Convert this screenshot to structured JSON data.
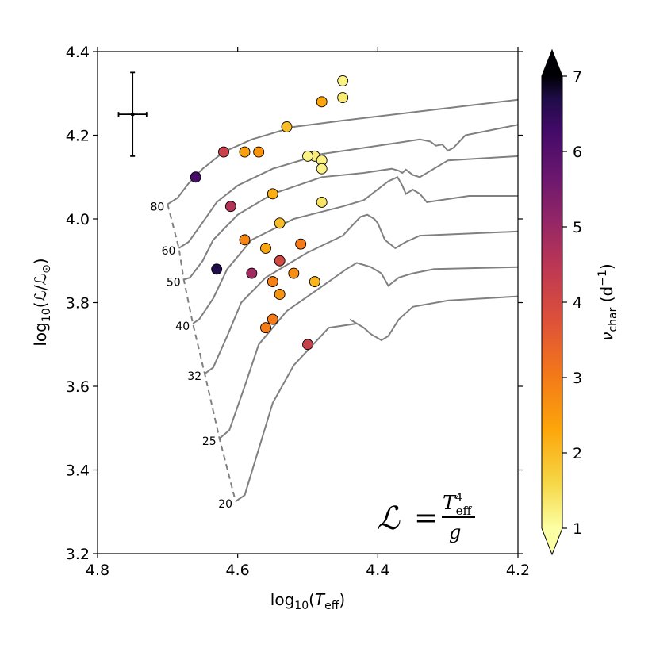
{
  "chart_data": {
    "type": "scatter",
    "title": "",
    "xlabel": {
      "main": "log",
      "sub": "10",
      "open": "(",
      "var": "T",
      "var_sub": "eff",
      "close": ")"
    },
    "ylabel": {
      "main": "log",
      "sub": "10",
      "open": "(",
      "num": "ℒ",
      "slash": "/",
      "den": "ℒ",
      "den_sub": "⊙",
      "close": ")"
    },
    "xlim": [
      4.8,
      4.2
    ],
    "ylim": [
      3.2,
      4.4
    ],
    "x_inverted": true,
    "xticks": [
      4.8,
      4.6,
      4.4,
      4.2
    ],
    "xtick_labels": [
      "4.8",
      "4.6",
      "4.4",
      "4.2"
    ],
    "yticks": [
      3.2,
      3.4,
      3.6,
      3.8,
      4.0,
      4.2,
      4.4
    ],
    "ytick_labels": [
      "3.2",
      "3.4",
      "3.6",
      "3.8",
      "4.0",
      "4.2",
      "4.4"
    ],
    "grid": false,
    "colorbar": {
      "label": {
        "main": "ν",
        "sub": "char",
        "unit": " (d",
        "sup": "−1",
        "close": ")"
      },
      "range": [
        1,
        7
      ],
      "ticks": [
        1,
        2,
        3,
        4,
        5,
        6,
        7
      ],
      "tick_labels": [
        "1",
        "2",
        "3",
        "4",
        "5",
        "6",
        "7"
      ],
      "extend": "both",
      "colormap": "inferno_r"
    },
    "points": [
      {
        "x": 4.45,
        "y": 4.33,
        "c": 1.2
      },
      {
        "x": 4.45,
        "y": 4.29,
        "c": 1.3
      },
      {
        "x": 4.48,
        "y": 4.28,
        "c": 2.3
      },
      {
        "x": 4.53,
        "y": 4.22,
        "c": 2.0
      },
      {
        "x": 4.49,
        "y": 4.15,
        "c": 1.3
      },
      {
        "x": 4.5,
        "y": 4.15,
        "c": 1.2
      },
      {
        "x": 4.48,
        "y": 4.14,
        "c": 1.2
      },
      {
        "x": 4.48,
        "y": 4.12,
        "c": 1.2
      },
      {
        "x": 4.48,
        "y": 4.04,
        "c": 1.4
      },
      {
        "x": 4.55,
        "y": 4.06,
        "c": 2.2
      },
      {
        "x": 4.54,
        "y": 3.99,
        "c": 2.0
      },
      {
        "x": 4.59,
        "y": 4.16,
        "c": 2.4
      },
      {
        "x": 4.57,
        "y": 4.16,
        "c": 2.6
      },
      {
        "x": 4.62,
        "y": 4.16,
        "c": 4.2
      },
      {
        "x": 4.66,
        "y": 4.1,
        "c": 6.2
      },
      {
        "x": 4.61,
        "y": 4.03,
        "c": 4.6
      },
      {
        "x": 4.59,
        "y": 3.95,
        "c": 2.8
      },
      {
        "x": 4.56,
        "y": 3.93,
        "c": 2.3
      },
      {
        "x": 4.51,
        "y": 3.94,
        "c": 3.0
      },
      {
        "x": 4.54,
        "y": 3.9,
        "c": 4.0
      },
      {
        "x": 4.52,
        "y": 3.87,
        "c": 2.7
      },
      {
        "x": 4.49,
        "y": 3.85,
        "c": 2.1
      },
      {
        "x": 4.55,
        "y": 3.85,
        "c": 2.9
      },
      {
        "x": 4.54,
        "y": 3.82,
        "c": 2.6
      },
      {
        "x": 4.63,
        "y": 3.88,
        "c": 6.7
      },
      {
        "x": 4.58,
        "y": 3.87,
        "c": 4.9
      },
      {
        "x": 4.55,
        "y": 3.76,
        "c": 3.0
      },
      {
        "x": 4.56,
        "y": 3.74,
        "c": 3.0
      },
      {
        "x": 4.5,
        "y": 3.7,
        "c": 4.2
      }
    ],
    "error_bar": {
      "x": 4.75,
      "y": 4.25,
      "xerr": 0.02,
      "yerr": 0.1
    },
    "tracks": [
      {
        "label": "80",
        "points": [
          [
            4.7,
            4.035
          ],
          [
            4.686,
            4.05
          ],
          [
            4.67,
            4.085
          ],
          [
            4.65,
            4.12
          ],
          [
            4.62,
            4.16
          ],
          [
            4.58,
            4.19
          ],
          [
            4.52,
            4.22
          ],
          [
            4.45,
            4.235
          ],
          [
            4.35,
            4.255
          ],
          [
            4.2,
            4.285
          ]
        ]
      },
      {
        "label": "60",
        "points": [
          [
            4.684,
            3.93
          ],
          [
            4.67,
            3.945
          ],
          [
            4.655,
            3.98
          ],
          [
            4.63,
            4.04
          ],
          [
            4.6,
            4.08
          ],
          [
            4.55,
            4.12
          ],
          [
            4.48,
            4.155
          ],
          [
            4.38,
            4.18
          ],
          [
            4.34,
            4.19
          ],
          [
            4.325,
            4.185
          ],
          [
            4.317,
            4.175
          ],
          [
            4.308,
            4.178
          ],
          [
            4.3,
            4.163
          ],
          [
            4.292,
            4.17
          ],
          [
            4.275,
            4.2
          ],
          [
            4.2,
            4.225
          ]
        ]
      },
      {
        "label": "50",
        "points": [
          [
            4.677,
            3.855
          ],
          [
            4.668,
            3.86
          ],
          [
            4.65,
            3.9
          ],
          [
            4.635,
            3.95
          ],
          [
            4.6,
            4.01
          ],
          [
            4.55,
            4.06
          ],
          [
            4.48,
            4.1
          ],
          [
            4.42,
            4.11
          ],
          [
            4.38,
            4.12
          ],
          [
            4.37,
            4.115
          ],
          [
            4.365,
            4.11
          ],
          [
            4.36,
            4.118
          ],
          [
            4.35,
            4.105
          ],
          [
            4.34,
            4.1
          ],
          [
            4.3,
            4.14
          ],
          [
            4.2,
            4.15
          ]
        ]
      },
      {
        "label": "40",
        "points": [
          [
            4.664,
            3.75
          ],
          [
            4.655,
            3.76
          ],
          [
            4.635,
            3.81
          ],
          [
            4.615,
            3.88
          ],
          [
            4.58,
            3.95
          ],
          [
            4.52,
            4.0
          ],
          [
            4.45,
            4.03
          ],
          [
            4.42,
            4.045
          ],
          [
            4.385,
            4.09
          ],
          [
            4.372,
            4.1
          ],
          [
            4.365,
            4.08
          ],
          [
            4.36,
            4.06
          ],
          [
            4.35,
            4.07
          ],
          [
            4.34,
            4.06
          ],
          [
            4.33,
            4.04
          ],
          [
            4.27,
            4.055
          ],
          [
            4.2,
            4.055
          ]
        ]
      },
      {
        "label": "32",
        "points": [
          [
            4.647,
            3.63
          ],
          [
            4.635,
            3.645
          ],
          [
            4.615,
            3.72
          ],
          [
            4.595,
            3.8
          ],
          [
            4.56,
            3.86
          ],
          [
            4.5,
            3.92
          ],
          [
            4.45,
            3.96
          ],
          [
            4.425,
            4.005
          ],
          [
            4.415,
            4.01
          ],
          [
            4.41,
            4.005
          ],
          [
            4.405,
            4.0
          ],
          [
            4.4,
            3.99
          ],
          [
            4.39,
            3.95
          ],
          [
            4.375,
            3.93
          ],
          [
            4.36,
            3.945
          ],
          [
            4.34,
            3.96
          ],
          [
            4.2,
            3.97
          ]
        ]
      },
      {
        "label": "25",
        "points": [
          [
            4.626,
            3.475
          ],
          [
            4.612,
            3.495
          ],
          [
            4.59,
            3.6
          ],
          [
            4.57,
            3.7
          ],
          [
            4.53,
            3.78
          ],
          [
            4.47,
            3.85
          ],
          [
            4.445,
            3.88
          ],
          [
            4.43,
            3.895
          ],
          [
            4.42,
            3.89
          ],
          [
            4.41,
            3.885
          ],
          [
            4.395,
            3.87
          ],
          [
            4.385,
            3.84
          ],
          [
            4.37,
            3.86
          ],
          [
            4.35,
            3.87
          ],
          [
            4.32,
            3.88
          ],
          [
            4.2,
            3.885
          ]
        ]
      },
      {
        "label": "20",
        "points": [
          [
            4.603,
            3.325
          ],
          [
            4.59,
            3.34
          ],
          [
            4.57,
            3.45
          ],
          [
            4.55,
            3.56
          ],
          [
            4.52,
            3.65
          ],
          [
            4.47,
            3.74
          ],
          [
            4.43,
            3.75
          ],
          [
            4.44,
            3.76
          ],
          [
            4.42,
            3.74
          ],
          [
            4.41,
            3.725
          ],
          [
            4.395,
            3.71
          ],
          [
            4.385,
            3.72
          ],
          [
            4.37,
            3.76
          ],
          [
            4.35,
            3.79
          ],
          [
            4.3,
            3.805
          ],
          [
            4.2,
            3.815
          ]
        ]
      }
    ],
    "formula": {
      "lhs": "ℒ",
      "eq": "=",
      "num": "T",
      "num_sup": "4",
      "num_sub": "eff",
      "den": "g"
    }
  }
}
